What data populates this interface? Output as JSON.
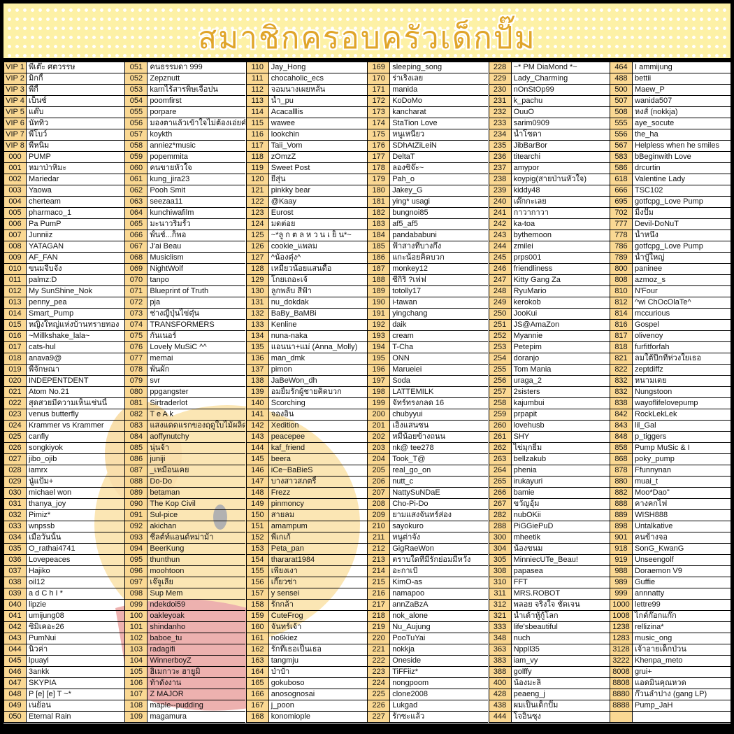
{
  "title": "สมาชิกครอบครัวเด็กปั๊ม",
  "colors": {
    "banner": "#fdf1a6",
    "title": "#e0a52a",
    "number_cell": "#fad893",
    "frame": "#000000"
  },
  "columns": [
    [
      [
        "VIP 1",
        "พี่เต๊ะ ศตวรรษ"
      ],
      [
        "VIP 2",
        "มิกกี้"
      ],
      [
        "VIP 3",
        "พี่กี้"
      ],
      [
        "VIP 4",
        "เบ็นซ์"
      ],
      [
        "VIP 5",
        "แต๊บ"
      ],
      [
        "VIP 6",
        "นัททิว"
      ],
      [
        "VIP 7",
        "พี่โบว์"
      ],
      [
        "VIP 8",
        "พี่หนิม"
      ],
      [
        "000",
        "PUMP"
      ],
      [
        "001",
        "หมาป่าหิมะ"
      ],
      [
        "002",
        "Mariedar"
      ],
      [
        "003",
        "Yaowa"
      ],
      [
        "004",
        "cherteam"
      ],
      [
        "005",
        "pharmaco_1"
      ],
      [
        "006",
        "Pa PumP"
      ],
      [
        "007",
        "Junniiz"
      ],
      [
        "008",
        "YATAGAN"
      ],
      [
        "009",
        "AF_FAN"
      ],
      [
        "010",
        "ขนมจีบจัง"
      ],
      [
        "011",
        "palmz:D"
      ],
      [
        "012",
        "My SunShine_Nok"
      ],
      [
        "013",
        "penny_pea"
      ],
      [
        "014",
        "Smart_Pump"
      ],
      [
        "015",
        "หญิงใหญ่แห่งบ้านทรายทอง"
      ],
      [
        "016",
        "~Millkshake_lala~"
      ],
      [
        "017",
        "cats-hul"
      ],
      [
        "018",
        "anava9@"
      ],
      [
        "019",
        "พีจักษณา"
      ],
      [
        "020",
        "INDEPENTDENT"
      ],
      [
        "021",
        "Atom No.21"
      ],
      [
        "022",
        "สุดสวยมีความเห็นเช่นนี้"
      ],
      [
        "023",
        "venus butterfly"
      ],
      [
        "024",
        "Krammer vs Krammer"
      ],
      [
        "025",
        "canfly"
      ],
      [
        "026",
        "songkiyok"
      ],
      [
        "027",
        "jibo_ojib"
      ],
      [
        "028",
        "iamrx"
      ],
      [
        "029",
        "นู๋แป้ม+"
      ],
      [
        "030",
        "michael won"
      ],
      [
        "031",
        "thanya_joy"
      ],
      [
        "032",
        "Pimiz*"
      ],
      [
        "033",
        "wnpssb"
      ],
      [
        "034",
        "เมื่อวันนั้น"
      ],
      [
        "035",
        "O_rathai4741"
      ],
      [
        "036",
        "Lovepeaces"
      ],
      [
        "037",
        "Hajiko"
      ],
      [
        "038",
        "oil12"
      ],
      [
        "039",
        "a d C h I *"
      ],
      [
        "040",
        "lipzie"
      ],
      [
        "041",
        "umijung08"
      ],
      [
        "042",
        "ซิมิเคอะ26"
      ],
      [
        "043",
        "PumNui"
      ],
      [
        "044",
        "นิวค่า"
      ],
      [
        "045",
        "lpuayl"
      ],
      [
        "046",
        "3ankk"
      ],
      [
        "047",
        "SKYPIA"
      ],
      [
        "048",
        "P [e] [e] T ~*"
      ],
      [
        "049",
        "เนย้อน"
      ],
      [
        "050",
        "Eternal Rain"
      ]
    ],
    [
      [
        "051",
        "คนธรรมดา 999"
      ],
      [
        "052",
        "Zepznutt"
      ],
      [
        "053",
        "karnไร้สารพิษเจือปน"
      ],
      [
        "054",
        "poomfirst"
      ],
      [
        "055",
        "porpare"
      ],
      [
        "056",
        "มองตาแล้วเข้าใจไม่ต้องเอ่ยคำ"
      ],
      [
        "057",
        "koykth"
      ],
      [
        "058",
        "anniez*music"
      ],
      [
        "059",
        "popemmita"
      ],
      [
        "060",
        "คนขายหัวใจ"
      ],
      [
        "061",
        "kung_jira23"
      ],
      [
        "062",
        "Pooh Smit"
      ],
      [
        "063",
        "seezaa11"
      ],
      [
        "064",
        "kunchiwafilm"
      ],
      [
        "065",
        "มะนาวริมรั้ว"
      ],
      [
        "066",
        "พั้นช์...ก็พอ"
      ],
      [
        "067",
        "J'ai Beau"
      ],
      [
        "068",
        "Musiclism"
      ],
      [
        "069",
        "NightWolf"
      ],
      [
        "070",
        "tanpo"
      ],
      [
        "071",
        "Blueprint of Truth"
      ],
      [
        "072",
        "pja"
      ],
      [
        "073",
        "ช่างญี่ปุ่นไข่ตุ๋น"
      ],
      [
        "074",
        "TRANSFORMERS"
      ],
      [
        "075",
        "กันเนอร์"
      ],
      [
        "076",
        "Lovely MuSiC ^^"
      ],
      [
        "077",
        "memai"
      ],
      [
        "078",
        "พันผัก"
      ],
      [
        "079",
        "svr"
      ],
      [
        "080",
        "ppgangster"
      ],
      [
        "081",
        "Sirtraderlot"
      ],
      [
        "082",
        "T e A k"
      ],
      [
        "083",
        "แสงแดดแรกของฤดูใบไม้ผลิด"
      ],
      [
        "084",
        "aoffynutchy"
      ],
      [
        "085",
        "นุ่นจ้า"
      ],
      [
        "086",
        "juniji"
      ],
      [
        "087",
        "_เหมือนเคย"
      ],
      [
        "088",
        "Do-Do"
      ],
      [
        "089",
        "betaman"
      ],
      [
        "090",
        "The Kop Civil"
      ],
      [
        "091",
        "Sul-pice"
      ],
      [
        "092",
        "akichan"
      ],
      [
        "093",
        "ชีลต์ท์แอนด์หม่าม้า"
      ],
      [
        "094",
        "BeerKung"
      ],
      [
        "095",
        "thunthun"
      ],
      [
        "096",
        "moohtoon"
      ],
      [
        "097",
        "เจ๊จูเลีย"
      ],
      [
        "098",
        "Sup Mem"
      ],
      [
        "099",
        "ndekdoi59"
      ],
      [
        "100",
        "oakleyoak"
      ],
      [
        "101",
        "shindanho"
      ],
      [
        "102",
        "baboe_tu"
      ],
      [
        "103",
        "radagifi"
      ],
      [
        "104",
        "WinnerboyZ"
      ],
      [
        "105",
        "ฮิเมกาวะ ฮายูมิ"
      ],
      [
        "106",
        "ท้าดังงาน"
      ],
      [
        "107",
        "Z MAJOR"
      ],
      [
        "108",
        "maple--pudding"
      ],
      [
        "109",
        "magamura"
      ]
    ],
    [
      [
        "110",
        "Jay_Hong"
      ],
      [
        "111",
        "chocaholic_ecs"
      ],
      [
        "112",
        "จอมนางเผยหลั่น"
      ],
      [
        "113",
        "น้ำ_pu"
      ],
      [
        "114",
        "Acacalllis"
      ],
      [
        "115",
        "wawee"
      ],
      [
        "116",
        "lookchin"
      ],
      [
        "117",
        "Taii_Vom"
      ],
      [
        "118",
        "zOmzZ"
      ],
      [
        "119",
        "Sweet Post"
      ],
      [
        "120",
        "ยี่สุ่น"
      ],
      [
        "121",
        "pinkky bear"
      ],
      [
        "122",
        "@Kaay"
      ],
      [
        "123",
        "Eurost"
      ],
      [
        "124",
        "มดต่อย"
      ],
      [
        "125",
        "~*ลู ก ต ล ห ว น เ ย็ น*~"
      ],
      [
        "126",
        "cookie_แพลม"
      ],
      [
        "127",
        "^น้องตุ๋ง^"
      ],
      [
        "128",
        "เหมียวน้อยแสนดื้อ"
      ],
      [
        "129",
        "โกยเถอะเจ้"
      ],
      [
        "130",
        "ลูกพลับ สีฟ้า"
      ],
      [
        "131",
        "nu_dokdak"
      ],
      [
        "132",
        "BaBy_BaMBi"
      ],
      [
        "133",
        "Kenline"
      ],
      [
        "134",
        "nuna-naka"
      ],
      [
        "135",
        "แอนนา+แม่ (Anna_Molly)"
      ],
      [
        "136",
        "man_dmk"
      ],
      [
        "137",
        "pimon"
      ],
      [
        "138",
        "JaBeWon_dh"
      ],
      [
        "139",
        "อมยิ้มรักผู้ชายคิดบวก"
      ],
      [
        "140",
        "Scorching"
      ],
      [
        "141",
        "จองอิน"
      ],
      [
        "142",
        "Xedition"
      ],
      [
        "143",
        "peacepee"
      ],
      [
        "144",
        "kaf_friend"
      ],
      [
        "145",
        "beera"
      ],
      [
        "146",
        "iCe~BaBieS"
      ],
      [
        "147",
        "บางสาวสภตรี์"
      ],
      [
        "148",
        "Frezz"
      ],
      [
        "149",
        "pinmoncy"
      ],
      [
        "150",
        "สายลม"
      ],
      [
        "151",
        "amampum"
      ],
      [
        "152",
        "พี่เกเก้"
      ],
      [
        "153",
        "Peta_pan"
      ],
      [
        "154",
        "thararat1984"
      ],
      [
        "155",
        "เพียงเงา"
      ],
      [
        "156",
        "เกี๊ยวซ่า"
      ],
      [
        "157",
        "y sensei"
      ],
      [
        "158",
        "รักกล้า"
      ],
      [
        "159",
        "CuteFrog"
      ],
      [
        "160",
        "จันทร์เจ้า"
      ],
      [
        "161",
        "no6kiez"
      ],
      [
        "162",
        "รักที่เธอเป็นเธอ"
      ],
      [
        "163",
        "tangmju"
      ],
      [
        "164",
        "ป่าป๋า"
      ],
      [
        "165",
        "gokuboso"
      ],
      [
        "166",
        "anosognosai"
      ],
      [
        "167",
        "j_poon"
      ],
      [
        "168",
        "konomiople"
      ]
    ],
    [
      [
        "169",
        "sleeping_song"
      ],
      [
        "170",
        "ร่าเริงเลย"
      ],
      [
        "171",
        "manida"
      ],
      [
        "172",
        "KoDoMo"
      ],
      [
        "173",
        "kancharat"
      ],
      [
        "174",
        "StaTion Love"
      ],
      [
        "175",
        "หนูเหนียว"
      ],
      [
        "176",
        "SDhAtZiLeiN"
      ],
      [
        "177",
        "DeltaT"
      ],
      [
        "178",
        "ลองซิจ๊ะ~"
      ],
      [
        "179",
        "Pah_o"
      ],
      [
        "180",
        "Jakey_G"
      ],
      [
        "181",
        "ying* usagi"
      ],
      [
        "182",
        "bungnoi85"
      ],
      [
        "183",
        "af5_af5"
      ],
      [
        "184",
        "pandababuni"
      ],
      [
        "185",
        "ฟ้าสางที่บางกึง"
      ],
      [
        "186",
        "แกะน้อยคิดบวก"
      ],
      [
        "187",
        "monkey12"
      ],
      [
        "188",
        "ซีกิริ ?เฟฟ"
      ],
      [
        "189",
        "totolly17"
      ],
      [
        "190",
        "i-tawan"
      ],
      [
        "191",
        "yingchang"
      ],
      [
        "192",
        "daik"
      ],
      [
        "193",
        "cream"
      ],
      [
        "194",
        "T-Cha"
      ],
      [
        "195",
        "ONN"
      ],
      [
        "196",
        "Marueiei"
      ],
      [
        "197",
        "Soda"
      ],
      [
        "198",
        "LATTEMILK"
      ],
      [
        "199",
        "จัทร์ทรงกลด 16"
      ],
      [
        "200",
        "chubyyui"
      ],
      [
        "201",
        "เอิงแสนซน"
      ],
      [
        "202",
        "หมีน้อยข้างถนน"
      ],
      [
        "203",
        "nk@ tee278"
      ],
      [
        "204",
        "Took_T@"
      ],
      [
        "205",
        "real_go_on"
      ],
      [
        "206",
        "nutt_c"
      ],
      [
        "207",
        "NattySuNDaE"
      ],
      [
        "208",
        "Cho-Pi-Do"
      ],
      [
        "209",
        "ยามแสงจันทร์ส่อง"
      ],
      [
        "210",
        "sayokuro"
      ],
      [
        "211",
        "หนูต่าจัง"
      ],
      [
        "212",
        "GigRaeWon"
      ],
      [
        "213",
        "ตราบใดที่มีรักย่อมมีหวัง"
      ],
      [
        "214",
        "อะกาเป้"
      ],
      [
        "215",
        "KimO-as"
      ],
      [
        "216",
        "namapoo"
      ],
      [
        "217",
        "annZaBzA"
      ],
      [
        "218",
        "nok_alone"
      ],
      [
        "219",
        "Nu_Aujung"
      ],
      [
        "220",
        "PooTuYai"
      ],
      [
        "221",
        "nokkja"
      ],
      [
        "222",
        "Oneside"
      ],
      [
        "223",
        "TiFFiiz*"
      ],
      [
        "224",
        "nongpoom"
      ],
      [
        "225",
        "clone2008"
      ],
      [
        "226",
        "Lukgad"
      ],
      [
        "227",
        "รักซะแล้ว"
      ]
    ],
    [
      [
        "228",
        "~* PM DiaMond *~"
      ],
      [
        "229",
        "Lady_Charming"
      ],
      [
        "230",
        "nOnStOp99"
      ],
      [
        "231",
        "k_pachu"
      ],
      [
        "232",
        "OuuO"
      ],
      [
        "233",
        "sarim0909"
      ],
      [
        "234",
        "น้ำโซดา"
      ],
      [
        "235",
        "JibBarBor"
      ],
      [
        "236",
        "titearchi"
      ],
      [
        "237",
        "amypor"
      ],
      [
        "238",
        "koypig(สายป่านหัวใจ)"
      ],
      [
        "239",
        "kiddy48"
      ],
      [
        "240",
        "เด๊กกะเลย"
      ],
      [
        "241",
        "กาวากาวา"
      ],
      [
        "242",
        "ka-toa"
      ],
      [
        "243",
        "bythemoon"
      ],
      [
        "244",
        "zmilei"
      ],
      [
        "245",
        "prps001"
      ],
      [
        "246",
        "friendliness"
      ],
      [
        "247",
        "Kitty Gang Za"
      ],
      [
        "248",
        "RyuMario"
      ],
      [
        "249",
        "kerokob"
      ],
      [
        "250",
        "JooKui"
      ],
      [
        "251",
        "JS@AmaZon"
      ],
      [
        "252",
        "Myannie"
      ],
      [
        "253",
        "Petepim"
      ],
      [
        "254",
        "doranjo"
      ],
      [
        "255",
        "Tom Mania"
      ],
      [
        "256",
        "uraga_2"
      ],
      [
        "257",
        "2sisters"
      ],
      [
        "258",
        "kajumbui"
      ],
      [
        "259",
        "prpapit"
      ],
      [
        "260",
        "lovehusb"
      ],
      [
        "261",
        "SHY"
      ],
      [
        "262",
        "ไข่มุกยิ้ม"
      ],
      [
        "263",
        "bellzakub"
      ],
      [
        "264",
        "phenia"
      ],
      [
        "265",
        "irukayuri"
      ],
      [
        "266",
        "bamie"
      ],
      [
        "267",
        "ขวัญอุ้ม"
      ],
      [
        "282",
        "nubOKii"
      ],
      [
        "288",
        "PiGGiePuD"
      ],
      [
        "300",
        "mheetik"
      ],
      [
        "304",
        "น้องขนม"
      ],
      [
        "305",
        "MinniecUTe_Beau!"
      ],
      [
        "308",
        "papasea"
      ],
      [
        "310",
        "FFT"
      ],
      [
        "311",
        "MRS.ROBOT"
      ],
      [
        "312",
        "พลอย จริงใจ ชัดเจน"
      ],
      [
        "321",
        "น้ำเต้าหู้กู้โลก"
      ],
      [
        "333",
        "life'sbeautiful"
      ],
      [
        "348",
        "nuch"
      ],
      [
        "363",
        "Nppll35"
      ],
      [
        "383",
        "iam_vy"
      ],
      [
        "388",
        "golffy"
      ],
      [
        "400",
        "น้องมะลิ"
      ],
      [
        "428",
        "peaeng_j"
      ],
      [
        "438",
        "ผมเป็นเด็กปั๊ม"
      ],
      [
        "444",
        "โจอินซุง"
      ]
    ],
    [
      [
        "464",
        "I ammijung"
      ],
      [
        "488",
        "bettii"
      ],
      [
        "500",
        "Maew_P"
      ],
      [
        "507",
        "wanida507"
      ],
      [
        "508",
        "หงส์ (nokkja)"
      ],
      [
        "555",
        "aye_socute"
      ],
      [
        "556",
        "the_ha"
      ],
      [
        "567",
        "Helpless when he smiles"
      ],
      [
        "583",
        "bBeginwith Love"
      ],
      [
        "586",
        "drcurtin"
      ],
      [
        "618",
        "Valentine Lady"
      ],
      [
        "666",
        "TSC102"
      ],
      [
        "695",
        "gotfcpg_Love Pump"
      ],
      [
        "702",
        "มิ้งปั๊ม"
      ],
      [
        "777",
        "Devil-DoNuT"
      ],
      [
        "778",
        "น้ำหนึ่ง"
      ],
      [
        "786",
        "gotfcpg_Love Pump"
      ],
      [
        "789",
        "น้ำปู๋ใหญ่"
      ],
      [
        "800",
        "paninee"
      ],
      [
        "808",
        "azmoz_s"
      ],
      [
        "810",
        "N'Four"
      ],
      [
        "812",
        "^wi ChOcOlaTe^"
      ],
      [
        "814",
        "mccurious"
      ],
      [
        "816",
        "Gospel"
      ],
      [
        "817",
        "olivenoy"
      ],
      [
        "818",
        "furfitforfah"
      ],
      [
        "821",
        "ลมใต้ปีกที่ห่วงใยเธอ"
      ],
      [
        "822",
        "zeptdiffz"
      ],
      [
        "832",
        "หนามเตย"
      ],
      [
        "832",
        "Nungstoon"
      ],
      [
        "838",
        "wayoflifelovepump"
      ],
      [
        "842",
        "RockLekLek"
      ],
      [
        "843",
        "lil_Gal"
      ],
      [
        "848",
        "p_tiggers"
      ],
      [
        "858",
        "Pump MuSic & I"
      ],
      [
        "868",
        "poky_pump"
      ],
      [
        "878",
        "Ffunnynan"
      ],
      [
        "880",
        "muai_t"
      ],
      [
        "882",
        "Moo*Dao\""
      ],
      [
        "888",
        "คางคกไฟ"
      ],
      [
        "889",
        "WISH888"
      ],
      [
        "898",
        "Untalkative"
      ],
      [
        "901",
        "คนข้างจอ"
      ],
      [
        "918",
        "SonG_KwanG"
      ],
      [
        "919",
        "Unseengolf"
      ],
      [
        "988",
        "Doraemon V9"
      ],
      [
        "989",
        "Guffie"
      ],
      [
        "999",
        "annnatty"
      ],
      [
        "1000",
        "lettre99"
      ],
      [
        "1008",
        "ไกด์ก๊อกแก๊ก"
      ],
      [
        "1238",
        "rellizina*"
      ],
      [
        "1283",
        "music_ong"
      ],
      [
        "3128",
        "เจ้าอายเด็กป่วน"
      ],
      [
        "3222",
        "Khenpa_meto"
      ],
      [
        "8008",
        "grui+"
      ],
      [
        "8808",
        "แอดมินคุณหวด"
      ],
      [
        "8880",
        "ก๊วนลำปาง (gang LP)"
      ],
      [
        "8888",
        "Pump_JaH"
      ],
      [
        "",
        ""
      ]
    ]
  ]
}
